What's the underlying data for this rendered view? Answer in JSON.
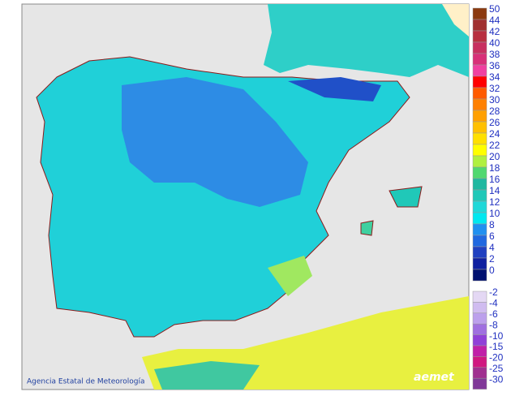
{
  "legend": {
    "items": [
      {
        "value": 50,
        "color": "#8b3a10"
      },
      {
        "value": 44,
        "color": "#a03030"
      },
      {
        "value": 42,
        "color": "#b83040"
      },
      {
        "value": 40,
        "color": "#c83060"
      },
      {
        "value": 38,
        "color": "#d83078"
      },
      {
        "value": 36,
        "color": "#f040a0"
      },
      {
        "value": 34,
        "color": "#ff0000"
      },
      {
        "value": 32,
        "color": "#ff5a00"
      },
      {
        "value": 30,
        "color": "#ff8000"
      },
      {
        "value": 28,
        "color": "#ffa000"
      },
      {
        "value": 26,
        "color": "#ffc000"
      },
      {
        "value": 24,
        "color": "#ffe000"
      },
      {
        "value": 22,
        "color": "#ffff00"
      },
      {
        "value": 20,
        "color": "#b0f040"
      },
      {
        "value": 18,
        "color": "#50d870"
      },
      {
        "value": 16,
        "color": "#20b8a0"
      },
      {
        "value": 14,
        "color": "#20c8b8"
      },
      {
        "value": 12,
        "color": "#20d8d8"
      },
      {
        "value": 10,
        "color": "#00e8f0"
      },
      {
        "value": 8,
        "color": "#2090f0"
      },
      {
        "value": 6,
        "color": "#2068e0"
      },
      {
        "value": 4,
        "color": "#2040c0"
      },
      {
        "value": 2,
        "color": "#1020a0"
      },
      {
        "value": 0,
        "color": "#001070"
      }
    ],
    "negative_items": [
      {
        "value": -2,
        "color": "#e4d8f4"
      },
      {
        "value": -4,
        "color": "#d0bcf0"
      },
      {
        "value": -6,
        "color": "#bca0ec"
      },
      {
        "value": -8,
        "color": "#a070e0"
      },
      {
        "value": -10,
        "color": "#9040d8"
      },
      {
        "value": -15,
        "color": "#c020a8"
      },
      {
        "value": -20,
        "color": "#d01880"
      },
      {
        "value": -25,
        "color": "#a03090"
      },
      {
        "value": -30,
        "color": "#803898"
      }
    ]
  },
  "footer": {
    "credit": "Agencia Estatal de Meteorología",
    "logo": "aemet"
  }
}
